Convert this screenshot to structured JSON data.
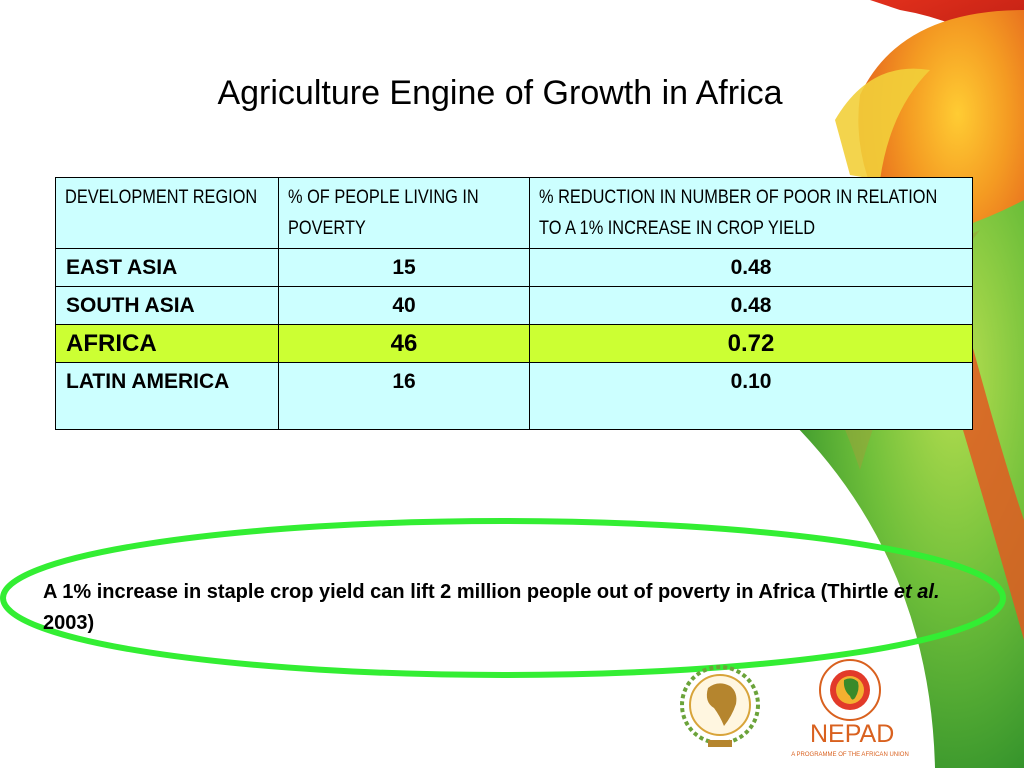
{
  "title": "Agriculture Engine of Growth in Africa",
  "table": {
    "headers": [
      "DEVELOPMENT REGION",
      "%  OF PEOPLE LIVING IN POVERTY",
      "% REDUCTION IN NUMBER OF POOR IN RELATION TO A 1% INCREASE IN CROP YIELD"
    ],
    "rows": [
      {
        "region": "EAST ASIA",
        "poverty": "15",
        "reduction": "0.48"
      },
      {
        "region": "SOUTH ASIA",
        "poverty": "40",
        "reduction": "0.48"
      },
      {
        "region": "AFRICA",
        "poverty": "46",
        "reduction": "0.72",
        "highlight": true
      },
      {
        "region": "LATIN AMERICA",
        "poverty": "16",
        "reduction": "0.10"
      }
    ]
  },
  "note": {
    "text_before": "A 1% increase in staple crop yield can lift 2 million people out of poverty in Africa (Thirtle ",
    "italic": "et al.",
    "text_after": " 2003)"
  },
  "logo": {
    "name": "NEPAD",
    "tagline": "A PROGRAMME OF THE AFRICAN UNION"
  },
  "colors": {
    "table_background": "#ccffff",
    "highlight_row": "#ccff33",
    "ellipse": "#33ee33",
    "brand_orange": "#d9611f"
  }
}
